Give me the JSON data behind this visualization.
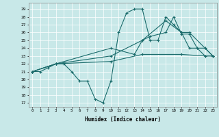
{
  "xlabel": "Humidex (Indice chaleur)",
  "bg_color": "#c8e8e8",
  "line_color": "#1a6b6b",
  "xlim": [
    -0.5,
    23.5
  ],
  "ylim": [
    16.5,
    29.8
  ],
  "yticks": [
    17,
    18,
    19,
    20,
    21,
    22,
    23,
    24,
    25,
    26,
    27,
    28,
    29
  ],
  "xticks": [
    0,
    1,
    2,
    3,
    4,
    5,
    6,
    7,
    8,
    9,
    10,
    11,
    12,
    13,
    14,
    15,
    16,
    17,
    18,
    19,
    20,
    21,
    22,
    23
  ],
  "line1_x": [
    0,
    1,
    2,
    3,
    4,
    5,
    6,
    7,
    8,
    9,
    10,
    11,
    12,
    13,
    14,
    15,
    16,
    17,
    18,
    19,
    20,
    21,
    22,
    23
  ],
  "line1_y": [
    21,
    21,
    21.5,
    22,
    22,
    21,
    19.8,
    19.8,
    17.5,
    17,
    19.8,
    26,
    28.5,
    29,
    29,
    25,
    25,
    28,
    27,
    26,
    24,
    24,
    23,
    23
  ],
  "line2_x": [
    0,
    3,
    10,
    13,
    14,
    15,
    17,
    18,
    19,
    20,
    21,
    22,
    23
  ],
  "line2_y": [
    21,
    22,
    24,
    23.2,
    25,
    25.5,
    26,
    28,
    25.8,
    25.8,
    24,
    24,
    23
  ],
  "line3_x": [
    0,
    3,
    10,
    14,
    17,
    19,
    20,
    22,
    23
  ],
  "line3_y": [
    21,
    22,
    23,
    25,
    27.5,
    26,
    26,
    24,
    23
  ],
  "line4_x": [
    0,
    3,
    10,
    14,
    19,
    22,
    23
  ],
  "line4_y": [
    21,
    22,
    22.3,
    23.2,
    23.2,
    23,
    23
  ]
}
